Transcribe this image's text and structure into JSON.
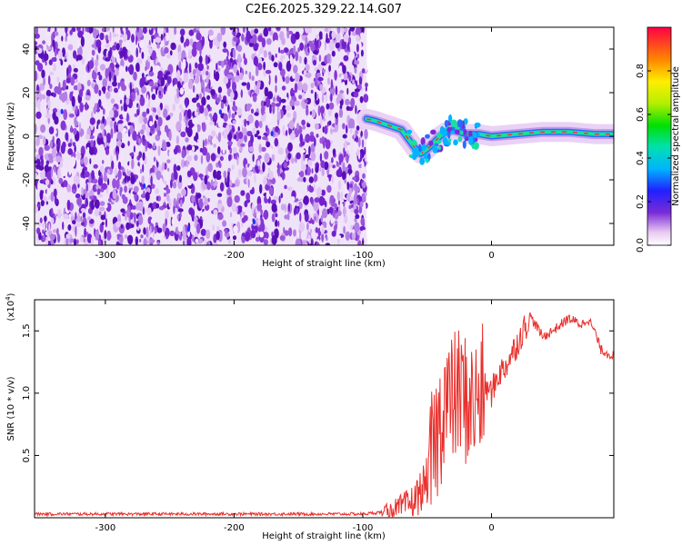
{
  "figure_title": "C2E6.2025.329.22.14.G07",
  "chart_data": [
    {
      "type": "heatmap",
      "xlabel": "Height of straight line (km)",
      "ylabel": "Frequency (Hz)",
      "xlim": [
        -355,
        95
      ],
      "ylim": [
        -50,
        50
      ],
      "x_ticks": [
        -300,
        -200,
        -100,
        0
      ],
      "y_ticks": [
        -40,
        -20,
        0,
        20,
        40
      ],
      "noise_region_x": [
        -355,
        -97
      ],
      "signal_trace": {
        "x": [
          -97,
          -90,
          -80,
          -70,
          -60,
          -55,
          -50,
          -45,
          -40,
          -35,
          -30,
          -25,
          -20,
          -10,
          0,
          20,
          40,
          60,
          80,
          95
        ],
        "y": [
          8,
          7,
          5,
          3,
          -5,
          -8,
          -6,
          -3,
          0,
          2,
          3,
          2,
          1,
          1,
          0,
          1,
          2,
          2,
          1,
          1
        ]
      },
      "colorbar": {
        "label": "Normalized spectral amplitude",
        "ticks": [
          0.0,
          0.2,
          0.4,
          0.6,
          0.8
        ],
        "ticklabels": [
          "0.0",
          "0.2",
          "0.4",
          "0.6",
          "0.8"
        ],
        "range": [
          0,
          1
        ]
      }
    },
    {
      "type": "line",
      "xlabel": "Height of straight line (km)",
      "ylabel": "SNR (10 * v/v)",
      "y_multiplier": "(x10",
      "y_multiplier_exp": "4",
      "y_multiplier_close": ")",
      "xlim": [
        -355,
        95
      ],
      "ylim": [
        0,
        1.75
      ],
      "x_ticks": [
        -300,
        -200,
        -100,
        0
      ],
      "y_ticks": [
        0.5,
        1.0,
        1.5
      ],
      "y_ticklabels": [
        "0.5",
        "1.0",
        "1.5"
      ],
      "color": "#e8302c",
      "series": [
        {
          "x": [
            -355,
            -100,
            -80,
            -70,
            -60,
            -50,
            -45,
            -40,
            -36,
            -33,
            -30,
            -25,
            -20,
            -15,
            -10,
            -5,
            0,
            5,
            10,
            20,
            30,
            40,
            50,
            60,
            70,
            75,
            80,
            85,
            90,
            95
          ],
          "y": [
            0.03,
            0.03,
            0.05,
            0.08,
            0.13,
            0.3,
            0.55,
            0.75,
            1.0,
            0.9,
            0.95,
            1.0,
            0.95,
            0.9,
            0.95,
            1.05,
            1.0,
            1.15,
            1.2,
            1.4,
            1.62,
            1.45,
            1.52,
            1.6,
            1.55,
            1.6,
            1.5,
            1.35,
            1.32,
            1.3
          ]
        }
      ]
    }
  ]
}
